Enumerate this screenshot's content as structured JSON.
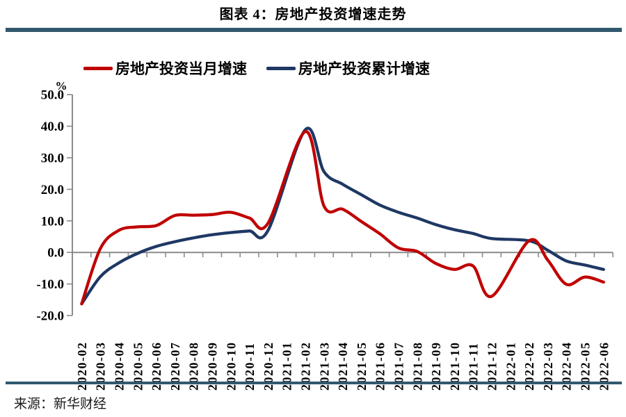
{
  "figure": {
    "title": "图表 4：房地产投资增速走势",
    "source": "来源：新华财经"
  },
  "legend": {
    "items": [
      {
        "label": "房地产投资当月增速",
        "color": "#c00000"
      },
      {
        "label": "房地产投资累计增速",
        "color": "#1f3864"
      }
    ]
  },
  "colors": {
    "accent_rule": "#31596e",
    "axis_gray": "#8a8a8a",
    "series_red": "#c00000",
    "series_navy": "#1f3864"
  },
  "chart_data": {
    "type": "line",
    "title": "图表 4：房地产投资增速走势",
    "xlabel": "",
    "ylabel": "%",
    "ylim": [
      -20,
      50
    ],
    "grid": false,
    "smooth": true,
    "legend_position": "top",
    "y_ticks": [
      50,
      40,
      30,
      20,
      10,
      0,
      -10,
      -20
    ],
    "y_tick_labels": [
      "50.0",
      "40.0",
      "30.0",
      "20.0",
      "10.0",
      "0.0",
      "-10.0",
      "-20.0"
    ],
    "categories": [
      "2020-02",
      "2020-03",
      "2020-04",
      "2020-05",
      "2020-06",
      "2020-07",
      "2020-08",
      "2020-09",
      "2020-10",
      "2020-11",
      "2020-12",
      "2021-01",
      "2021-02",
      "2021-03",
      "2021-04",
      "2021-05",
      "2021-06",
      "2021-07",
      "2021-08",
      "2021-09",
      "2021-10",
      "2021-11",
      "2021-12",
      "2022-01",
      "2022-02",
      "2022-03",
      "2022-04",
      "2022-05",
      "2022-06"
    ],
    "series": [
      {
        "name": "房地产投资当月增速",
        "color": "#c00000",
        "values": [
          -16.3,
          1.2,
          7.0,
          8.1,
          8.5,
          11.7,
          11.8,
          12.0,
          12.7,
          10.9,
          9.3,
          null,
          38.3,
          14.7,
          13.7,
          9.8,
          5.9,
          1.4,
          0.3,
          -3.5,
          -5.4,
          -4.3,
          -13.9,
          null,
          3.7,
          -2.4,
          -10.1,
          -7.8,
          -9.4
        ]
      },
      {
        "name": "房地产投资累计增速",
        "color": "#1f3864",
        "values": [
          -16.3,
          -7.7,
          -3.3,
          -0.3,
          1.9,
          3.4,
          4.6,
          5.6,
          6.3,
          6.8,
          7.0,
          null,
          38.9,
          25.6,
          21.6,
          18.3,
          15.0,
          12.7,
          10.9,
          8.8,
          7.2,
          6.0,
          4.4,
          null,
          3.7,
          0.7,
          -2.7,
          -4.0,
          -5.4
        ]
      }
    ]
  }
}
